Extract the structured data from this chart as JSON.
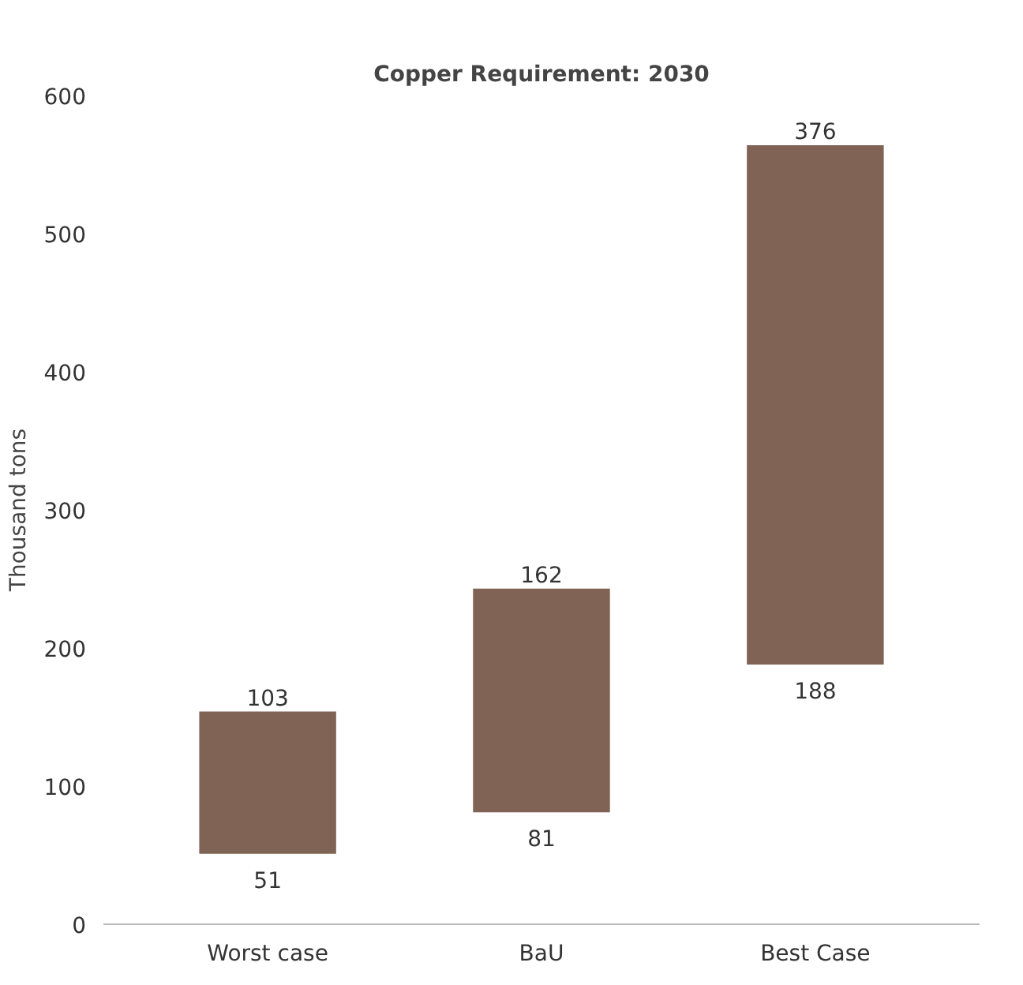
{
  "chart_data": {
    "type": "bar",
    "title": "Copper Requirement: 2030",
    "ylabel": "Thousand tons",
    "categories": [
      "Worst case",
      "BaU",
      "Best Case"
    ],
    "values": [
      103,
      162,
      376
    ],
    "base": [
      51,
      81,
      188
    ],
    "color": "#806355",
    "data_labels": true,
    "annotations": [
      {
        "text": "51",
        "x": "Worst case",
        "y": 51
      },
      {
        "text": "81",
        "x": "BaU",
        "y": 81
      },
      {
        "text": "188",
        "x": "Best Case",
        "y": 188
      }
    ],
    "ylim": [
      0,
      600
    ],
    "yticks": [
      0,
      100,
      200,
      300,
      400,
      500,
      600
    ],
    "grid": false
  }
}
